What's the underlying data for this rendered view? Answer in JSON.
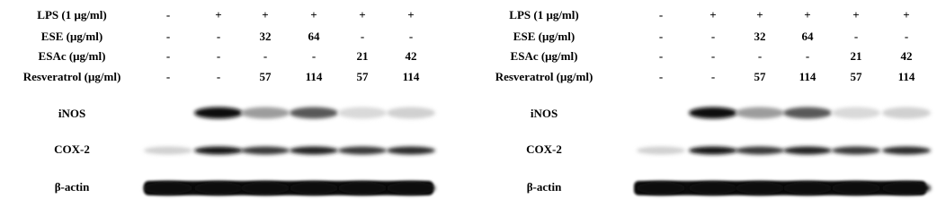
{
  "panels": [
    {
      "treatments": [
        {
          "label": "LPS (1 μg/ml)",
          "values": [
            "-",
            "+",
            "+",
            "+",
            "+",
            "+"
          ]
        },
        {
          "label": "ESE (μg/ml)",
          "values": [
            "-",
            "-",
            "32",
            "64",
            "-",
            "-"
          ]
        },
        {
          "label": "ESAc (μg/ml)",
          "values": [
            "-",
            "-",
            "-",
            "-",
            "21",
            "42"
          ]
        },
        {
          "label": "Resveratrol (μg/ml)",
          "values": [
            "-",
            "-",
            "57",
            "114",
            "57",
            "114"
          ]
        }
      ],
      "blots": [
        {
          "label": "iNOS"
        },
        {
          "label": "COX-2"
        },
        {
          "label": "β-actin"
        }
      ]
    },
    {
      "treatments": [
        {
          "label": "LPS (1 μg/ml)",
          "values": [
            "-",
            "+",
            "+",
            "+",
            "+",
            "+"
          ]
        },
        {
          "label": "ESE (μg/ml)",
          "values": [
            "-",
            "-",
            "32",
            "64",
            "-",
            "-"
          ]
        },
        {
          "label": "ESAc (μg/ml)",
          "values": [
            "-",
            "-",
            "-",
            "-",
            "21",
            "42"
          ]
        },
        {
          "label": "Resveratrol (μg/ml)",
          "values": [
            "-",
            "-",
            "57",
            "114",
            "57",
            "114"
          ]
        }
      ],
      "blots": [
        {
          "label": "iNOS"
        },
        {
          "label": "COX-2"
        },
        {
          "label": "β-actin"
        }
      ]
    }
  ]
}
